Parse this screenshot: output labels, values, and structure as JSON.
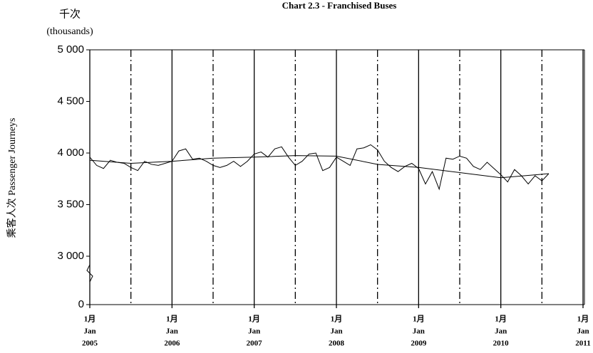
{
  "chart_data": {
    "type": "line",
    "title": "Chart 2.3 -  Franchised Buses",
    "units_zh": "千次",
    "units_en": "(thousands)",
    "y_label": "乘客人次  Passenger Journeys",
    "xlim": [
      "2005-01",
      "2011-01"
    ],
    "xticks": [
      {
        "value": "2005-01",
        "label": [
          "1月",
          "Jan",
          "2005"
        ]
      },
      {
        "value": "2006-01",
        "label": [
          "1月",
          "Jan",
          "2006"
        ]
      },
      {
        "value": "2007-01",
        "label": [
          "1月",
          "Jan",
          "2007"
        ]
      },
      {
        "value": "2008-01",
        "label": [
          "1月",
          "Jan",
          "2008"
        ]
      },
      {
        "value": "2009-01",
        "label": [
          "1月",
          "Jan",
          "2009"
        ]
      },
      {
        "value": "2010-01",
        "label": [
          "1月",
          "Jan",
          "2010"
        ]
      },
      {
        "value": "2011-01",
        "label": [
          "1月",
          "Jan",
          "2011"
        ]
      }
    ],
    "minor_xticks": [
      "2005-07",
      "2006-07",
      "2007-07",
      "2008-07",
      "2009-07",
      "2010-07"
    ],
    "ylim": [
      3000,
      5000
    ],
    "y_axis_break": true,
    "yticks": [
      0,
      {
        "value": 3000,
        "label": "3 000"
      },
      {
        "value": 3500,
        "label": "3 500"
      },
      {
        "value": 4000,
        "label": "4 000"
      },
      {
        "value": 4500,
        "label": "4 500"
      },
      {
        "value": 5000,
        "label": "5 000"
      }
    ],
    "series": [
      {
        "color": "#000000",
        "x": [
          "2005-01",
          "2005-02",
          "2005-03",
          "2005-04",
          "2005-05",
          "2005-06",
          "2005-07",
          "2005-08",
          "2005-09",
          "2005-10",
          "2005-11",
          "2005-12",
          "2006-01",
          "2006-02",
          "2006-03",
          "2006-04",
          "2006-05",
          "2006-06",
          "2006-07",
          "2006-08",
          "2006-09",
          "2006-10",
          "2006-11",
          "2006-12",
          "2007-01",
          "2007-02",
          "2007-03",
          "2007-04",
          "2007-05",
          "2007-06",
          "2007-07",
          "2007-08",
          "2007-09",
          "2007-10",
          "2007-11",
          "2007-12",
          "2008-01",
          "2008-02",
          "2008-03",
          "2008-04",
          "2008-05",
          "2008-06",
          "2008-07",
          "2008-08",
          "2008-09",
          "2008-10",
          "2008-11",
          "2008-12",
          "2009-01",
          "2009-02",
          "2009-03",
          "2009-04",
          "2009-05",
          "2009-06",
          "2009-07",
          "2009-08",
          "2009-09",
          "2009-10",
          "2009-11",
          "2009-12",
          "2010-01",
          "2010-02",
          "2010-03",
          "2010-04",
          "2010-05",
          "2010-06",
          "2010-07",
          "2010-08"
        ],
        "values": [
          3960,
          3880,
          3850,
          3930,
          3910,
          3900,
          3860,
          3830,
          3920,
          3890,
          3880,
          3900,
          3920,
          4020,
          4040,
          3940,
          3950,
          3920,
          3880,
          3860,
          3880,
          3920,
          3870,
          3920,
          3990,
          4010,
          3960,
          4040,
          4060,
          3960,
          3880,
          3920,
          3990,
          4000,
          3830,
          3860,
          3960,
          3920,
          3880,
          4040,
          4050,
          4080,
          4030,
          3920,
          3860,
          3820,
          3870,
          3900,
          3850,
          3700,
          3820,
          3650,
          3950,
          3940,
          3970,
          3950,
          3870,
          3840,
          3910,
          3850,
          3790,
          3720,
          3840,
          3780,
          3700,
          3780,
          3730,
          3800
        ]
      },
      {
        "color": "#000000",
        "x": [
          "2005-01",
          "2005-07",
          "2006-01",
          "2006-07",
          "2007-01",
          "2007-07",
          "2008-01",
          "2008-07",
          "2009-01",
          "2009-07",
          "2010-01",
          "2010-08"
        ],
        "values": [
          3930,
          3900,
          3920,
          3950,
          3960,
          3975,
          3970,
          3890,
          3860,
          3810,
          3760,
          3800
        ]
      }
    ]
  }
}
